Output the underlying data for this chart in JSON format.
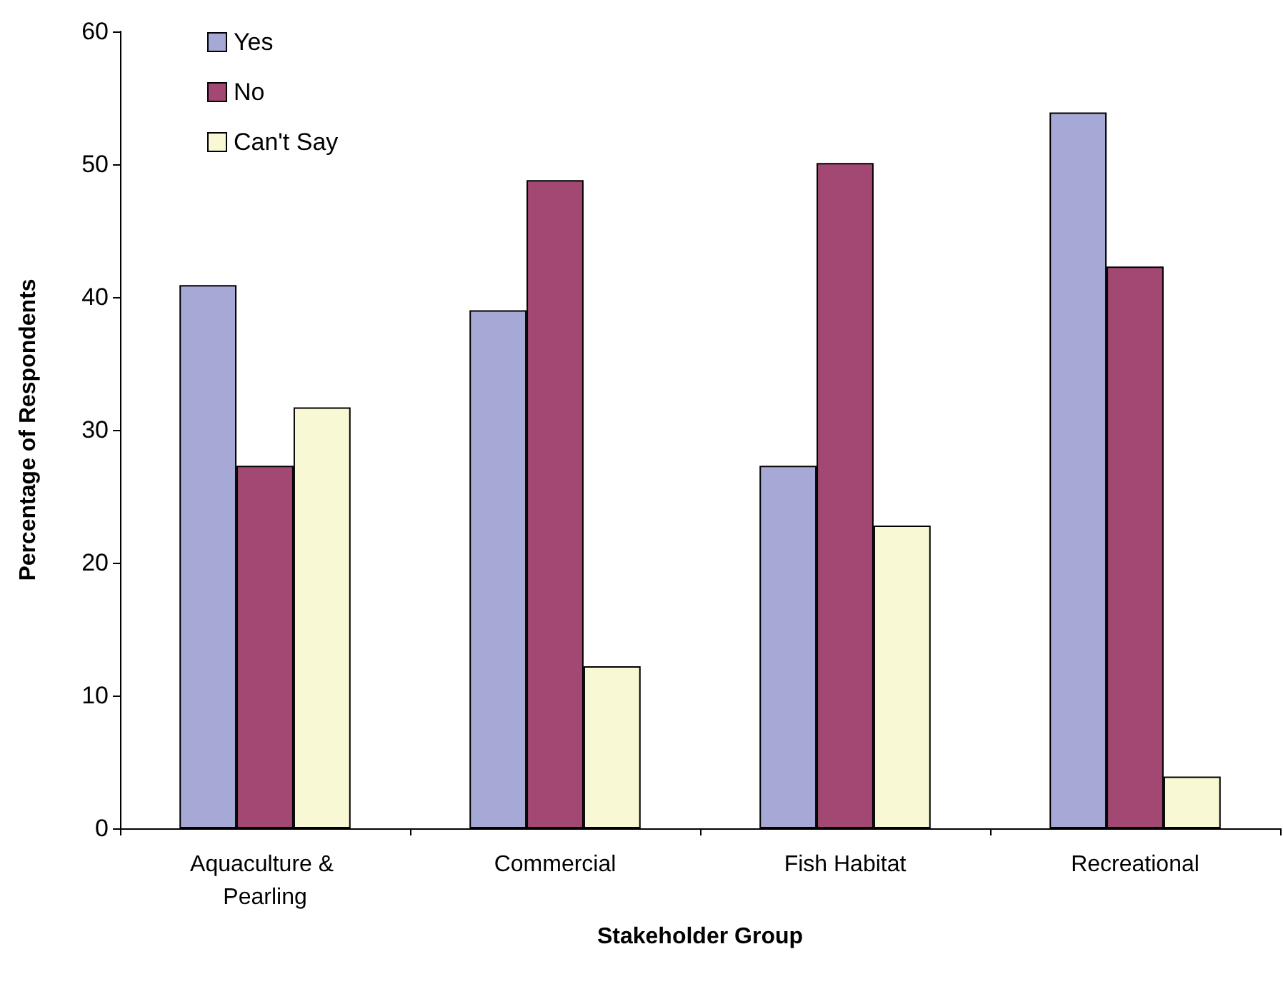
{
  "chart_data": {
    "type": "bar",
    "xlabel": "Stakeholder Group",
    "ylabel": "Percentage of Respondents",
    "categories": [
      "Aquaculture & Pearling",
      "Commercial",
      "Fish Habitat",
      "Recreational"
    ],
    "series": [
      {
        "name": "Yes",
        "color": "#a6a8d6",
        "values": [
          40.9,
          39.0,
          27.3,
          53.9
        ]
      },
      {
        "name": "No",
        "color": "#a34872",
        "values": [
          27.3,
          48.8,
          50.1,
          42.3
        ]
      },
      {
        "name": "Can't Say",
        "color": "#f8f8d4",
        "values": [
          31.7,
          12.2,
          22.8,
          3.9
        ]
      }
    ],
    "ylim": [
      0,
      60
    ],
    "yticks": [
      0,
      10,
      20,
      30,
      40,
      50,
      60
    ],
    "grid": false,
    "legend": "top left"
  }
}
